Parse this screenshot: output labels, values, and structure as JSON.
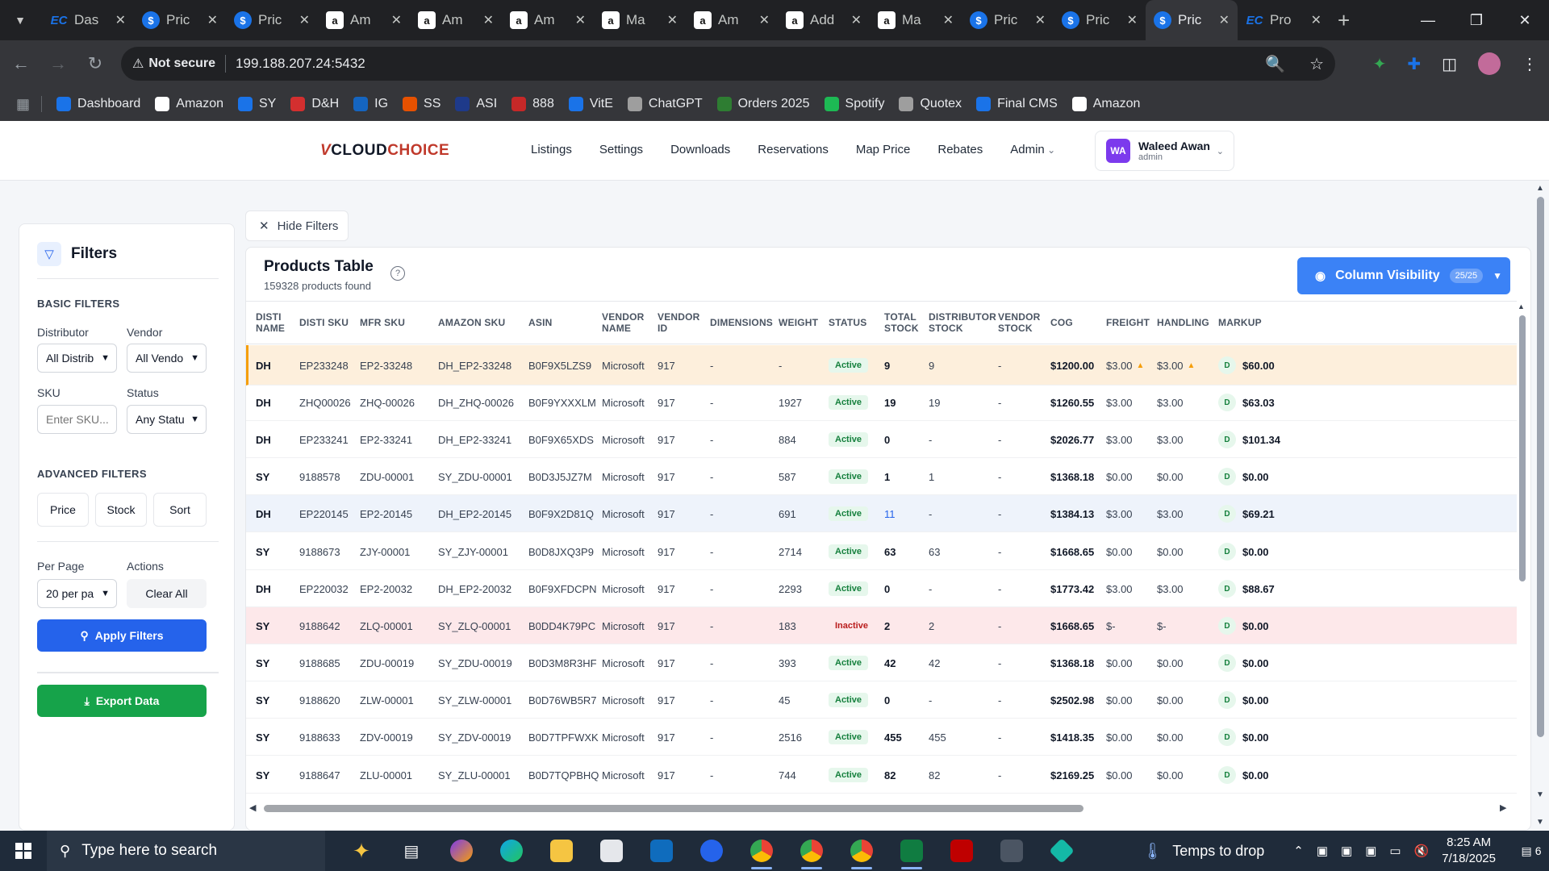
{
  "browser": {
    "tabs": [
      {
        "icon": "ec-icon",
        "title": "Das",
        "active": false
      },
      {
        "icon": "dollar-icon",
        "title": "Pric",
        "active": false
      },
      {
        "icon": "dollar-icon",
        "title": "Pric",
        "active": false
      },
      {
        "icon": "amazon-icon",
        "title": "Am",
        "active": false
      },
      {
        "icon": "amazon-icon",
        "title": "Am",
        "active": false
      },
      {
        "icon": "amazon-icon",
        "title": "Am",
        "active": false
      },
      {
        "icon": "amazon-icon",
        "title": "Ma",
        "active": false
      },
      {
        "icon": "amazon-icon",
        "title": "Am",
        "active": false
      },
      {
        "icon": "amazon-icon",
        "title": "Add",
        "active": false
      },
      {
        "icon": "amazon-icon",
        "title": "Ma",
        "active": false
      },
      {
        "icon": "dollar-icon",
        "title": "Pric",
        "active": false
      },
      {
        "icon": "dollar-icon",
        "title": "Pric",
        "active": false
      },
      {
        "icon": "dollar-icon",
        "title": "Pric",
        "active": true
      },
      {
        "icon": "ec-icon",
        "title": "Pro",
        "active": false
      }
    ],
    "security_label": "Not secure",
    "url": "199.188.207.24:5432",
    "bookmarks": [
      {
        "label": "Dashboard",
        "color": "#1a73e8"
      },
      {
        "label": "Amazon",
        "color": "#ffffff"
      },
      {
        "label": "SY",
        "color": "#1a73e8"
      },
      {
        "label": "D&H",
        "color": "#d32f2f"
      },
      {
        "label": "IG",
        "color": "#1565c0"
      },
      {
        "label": "SS",
        "color": "#e65100"
      },
      {
        "label": "ASI",
        "color": "#1e3a8a"
      },
      {
        "label": "888",
        "color": "#c62828"
      },
      {
        "label": "VitE",
        "color": "#1a73e8"
      },
      {
        "label": "ChatGPT",
        "color": "#9e9e9e"
      },
      {
        "label": "Orders 2025",
        "color": "#2e7d32"
      },
      {
        "label": "Spotify",
        "color": "#1db954"
      },
      {
        "label": "Quotex",
        "color": "#9e9e9e"
      },
      {
        "label": "Final CMS",
        "color": "#1a73e8"
      },
      {
        "label": "Amazon",
        "color": "#ffffff"
      }
    ]
  },
  "app": {
    "logo_v": "V",
    "logo_cloud": "CLOUD",
    "logo_choice": "CHOICE",
    "nav": [
      "Listings",
      "Settings",
      "Downloads",
      "Reservations",
      "Map Price",
      "Rebates",
      "Admin"
    ],
    "user": {
      "initials": "WA",
      "name": "Waleed Awan",
      "role": "admin"
    }
  },
  "filters": {
    "title": "Filters",
    "basic_title": "BASIC FILTERS",
    "distributor_label": "Distributor",
    "distributor_value": "All Distrib",
    "vendor_label": "Vendor",
    "vendor_value": "All Vendo",
    "sku_label": "SKU",
    "sku_placeholder": "Enter SKU...",
    "status_label": "Status",
    "status_value": "Any Statu",
    "advanced_title": "ADVANCED FILTERS",
    "price_btn": "Price",
    "stock_btn": "Stock",
    "sort_btn": "Sort",
    "per_page_label": "Per Page",
    "per_page_value": "20 per pa",
    "actions_label": "Actions",
    "clear_all": "Clear All",
    "apply": "Apply Filters",
    "export": "Export Data"
  },
  "main": {
    "hide_filters": "Hide Filters",
    "table_title": "Products Table",
    "products_found": "159328 products found",
    "column_visibility": "Column Visibility",
    "column_visibility_badge": "25/25",
    "columns": [
      {
        "key": "disti_name",
        "label1": "DISTI",
        "label2": "NAME"
      },
      {
        "key": "disti_sku",
        "label1": "DISTI SKU",
        "label2": ""
      },
      {
        "key": "mfr_sku",
        "label1": "MFR SKU",
        "label2": ""
      },
      {
        "key": "amazon_sku",
        "label1": "AMAZON SKU",
        "label2": ""
      },
      {
        "key": "asin",
        "label1": "ASIN",
        "label2": ""
      },
      {
        "key": "vendor_name",
        "label1": "VENDOR",
        "label2": "NAME"
      },
      {
        "key": "vendor_id",
        "label1": "VENDOR",
        "label2": "ID"
      },
      {
        "key": "dimensions",
        "label1": "DIMENSIONS",
        "label2": ""
      },
      {
        "key": "weight",
        "label1": "WEIGHT",
        "label2": ""
      },
      {
        "key": "status",
        "label1": "STATUS",
        "label2": ""
      },
      {
        "key": "total_stock",
        "label1": "TOTAL",
        "label2": "STOCK"
      },
      {
        "key": "distributor_stock",
        "label1": "DISTRIBUTOR",
        "label2": "STOCK"
      },
      {
        "key": "vendor_stock",
        "label1": "VENDOR",
        "label2": "STOCK"
      },
      {
        "key": "cog",
        "label1": "COG",
        "label2": ""
      },
      {
        "key": "freight",
        "label1": "FREIGHT",
        "label2": ""
      },
      {
        "key": "handling",
        "label1": "HANDLING",
        "label2": ""
      },
      {
        "key": "markup",
        "label1": "MARKUP",
        "label2": ""
      }
    ],
    "rows": [
      {
        "disti": "DH",
        "disti_sku": "EP233248",
        "mfr_sku": "EP2-33248",
        "amazon_sku": "DH_EP2-33248",
        "asin": "B0F9X5LZS9",
        "vendor": "Microsoft",
        "vendor_id": "917",
        "dimensions": "-",
        "weight": "-",
        "status": "Active",
        "total_stock": "9",
        "dist_stock": "9",
        "vendor_stock": "-",
        "cog": "$1200.00",
        "freight": "$3.00",
        "handling": "$3.00",
        "markup_badge": "D",
        "markup": "$60.00",
        "highlight": "orange",
        "warn": true
      },
      {
        "disti": "DH",
        "disti_sku": "ZHQ00026",
        "mfr_sku": "ZHQ-00026",
        "amazon_sku": "DH_ZHQ-00026",
        "asin": "B0F9YXXXLM",
        "vendor": "Microsoft",
        "vendor_id": "917",
        "dimensions": "-",
        "weight": "1927",
        "status": "Active",
        "total_stock": "19",
        "dist_stock": "19",
        "vendor_stock": "-",
        "cog": "$1260.55",
        "freight": "$3.00",
        "handling": "$3.00",
        "markup_badge": "D",
        "markup": "$63.03",
        "highlight": "",
        "warn": false
      },
      {
        "disti": "DH",
        "disti_sku": "EP233241",
        "mfr_sku": "EP2-33241",
        "amazon_sku": "DH_EP2-33241",
        "asin": "B0F9X65XDS",
        "vendor": "Microsoft",
        "vendor_id": "917",
        "dimensions": "-",
        "weight": "884",
        "status": "Active",
        "total_stock": "0",
        "dist_stock": "-",
        "vendor_stock": "-",
        "cog": "$2026.77",
        "freight": "$3.00",
        "handling": "$3.00",
        "markup_badge": "D",
        "markup": "$101.34",
        "highlight": "",
        "warn": false
      },
      {
        "disti": "SY",
        "disti_sku": "9188578",
        "mfr_sku": "ZDU-00001",
        "amazon_sku": "SY_ZDU-00001",
        "asin": "B0D3J5JZ7M",
        "vendor": "Microsoft",
        "vendor_id": "917",
        "dimensions": "-",
        "weight": "587",
        "status": "Active",
        "total_stock": "1",
        "dist_stock": "1",
        "vendor_stock": "-",
        "cog": "$1368.18",
        "freight": "$0.00",
        "handling": "$0.00",
        "markup_badge": "D",
        "markup": "$0.00",
        "highlight": "",
        "warn": false
      },
      {
        "disti": "DH",
        "disti_sku": "EP220145",
        "mfr_sku": "EP2-20145",
        "amazon_sku": "DH_EP2-20145",
        "asin": "B0F9X2D81Q",
        "vendor": "Microsoft",
        "vendor_id": "917",
        "dimensions": "-",
        "weight": "691",
        "status": "Active",
        "total_stock": "11",
        "dist_stock": "-",
        "vendor_stock": "-",
        "cog": "$1384.13",
        "freight": "$3.00",
        "handling": "$3.00",
        "markup_badge": "D",
        "markup": "$69.21",
        "highlight": "blue",
        "warn": false
      },
      {
        "disti": "SY",
        "disti_sku": "9188673",
        "mfr_sku": "ZJY-00001",
        "amazon_sku": "SY_ZJY-00001",
        "asin": "B0D8JXQ3P9",
        "vendor": "Microsoft",
        "vendor_id": "917",
        "dimensions": "-",
        "weight": "2714",
        "status": "Active",
        "total_stock": "63",
        "dist_stock": "63",
        "vendor_stock": "-",
        "cog": "$1668.65",
        "freight": "$0.00",
        "handling": "$0.00",
        "markup_badge": "D",
        "markup": "$0.00",
        "highlight": "",
        "warn": false
      },
      {
        "disti": "DH",
        "disti_sku": "EP220032",
        "mfr_sku": "EP2-20032",
        "amazon_sku": "DH_EP2-20032",
        "asin": "B0F9XFDCPN",
        "vendor": "Microsoft",
        "vendor_id": "917",
        "dimensions": "-",
        "weight": "2293",
        "status": "Active",
        "total_stock": "0",
        "dist_stock": "-",
        "vendor_stock": "-",
        "cog": "$1773.42",
        "freight": "$3.00",
        "handling": "$3.00",
        "markup_badge": "D",
        "markup": "$88.67",
        "highlight": "",
        "warn": false
      },
      {
        "disti": "SY",
        "disti_sku": "9188642",
        "mfr_sku": "ZLQ-00001",
        "amazon_sku": "SY_ZLQ-00001",
        "asin": "B0DD4K79PC",
        "vendor": "Microsoft",
        "vendor_id": "917",
        "dimensions": "-",
        "weight": "183",
        "status": "Inactive",
        "total_stock": "2",
        "dist_stock": "2",
        "vendor_stock": "-",
        "cog": "$1668.65",
        "freight": "$-",
        "handling": "$-",
        "markup_badge": "D",
        "markup": "$0.00",
        "highlight": "red",
        "warn": false
      },
      {
        "disti": "SY",
        "disti_sku": "9188685",
        "mfr_sku": "ZDU-00019",
        "amazon_sku": "SY_ZDU-00019",
        "asin": "B0D3M8R3HF",
        "vendor": "Microsoft",
        "vendor_id": "917",
        "dimensions": "-",
        "weight": "393",
        "status": "Active",
        "total_stock": "42",
        "dist_stock": "42",
        "vendor_stock": "-",
        "cog": "$1368.18",
        "freight": "$0.00",
        "handling": "$0.00",
        "markup_badge": "D",
        "markup": "$0.00",
        "highlight": "",
        "warn": false
      },
      {
        "disti": "SY",
        "disti_sku": "9188620",
        "mfr_sku": "ZLW-00001",
        "amazon_sku": "SY_ZLW-00001",
        "asin": "B0D76WB5R7",
        "vendor": "Microsoft",
        "vendor_id": "917",
        "dimensions": "-",
        "weight": "45",
        "status": "Active",
        "total_stock": "0",
        "dist_stock": "-",
        "vendor_stock": "-",
        "cog": "$2502.98",
        "freight": "$0.00",
        "handling": "$0.00",
        "markup_badge": "D",
        "markup": "$0.00",
        "highlight": "",
        "warn": false
      },
      {
        "disti": "SY",
        "disti_sku": "9188633",
        "mfr_sku": "ZDV-00019",
        "amazon_sku": "SY_ZDV-00019",
        "asin": "B0D7TPFWXK",
        "vendor": "Microsoft",
        "vendor_id": "917",
        "dimensions": "-",
        "weight": "2516",
        "status": "Active",
        "total_stock": "455",
        "dist_stock": "455",
        "vendor_stock": "-",
        "cog": "$1418.35",
        "freight": "$0.00",
        "handling": "$0.00",
        "markup_badge": "D",
        "markup": "$0.00",
        "highlight": "",
        "warn": false
      },
      {
        "disti": "SY",
        "disti_sku": "9188647",
        "mfr_sku": "ZLU-00001",
        "amazon_sku": "SY_ZLU-00001",
        "asin": "B0D7TQPBHQ",
        "vendor": "Microsoft",
        "vendor_id": "917",
        "dimensions": "-",
        "weight": "744",
        "status": "Active",
        "total_stock": "82",
        "dist_stock": "82",
        "vendor_stock": "-",
        "cog": "$2169.25",
        "freight": "$0.00",
        "handling": "$0.00",
        "markup_badge": "D",
        "markup": "$0.00",
        "highlight": "",
        "warn": false
      }
    ]
  },
  "taskbar": {
    "search_placeholder": "Type here to search",
    "weather": "Temps to drop",
    "time": "8:25 AM",
    "date": "7/18/2025",
    "notifications": "6"
  }
}
